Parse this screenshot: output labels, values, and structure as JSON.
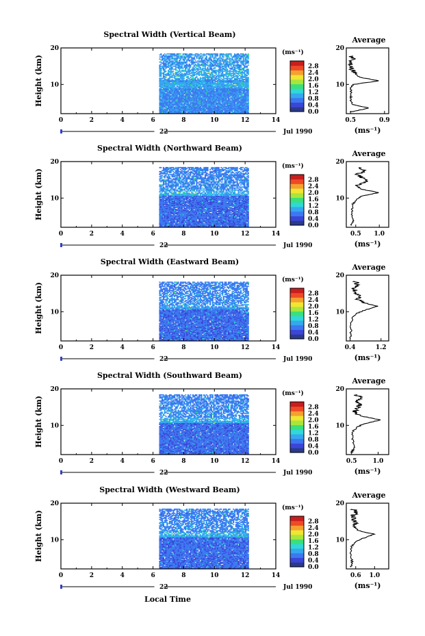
{
  "figure": {
    "x_axis_label": "Local Time",
    "date_day": "22",
    "date_month_year": "Jul 1990",
    "average_title": "Average",
    "colorbar_unit": "(ms⁻¹)",
    "average_unit": "(ms⁻¹)",
    "colorbar_ticks": [
      "0.0",
      "0.4",
      "0.8",
      "1.2",
      "1.6",
      "2.0",
      "2.4",
      "2.8"
    ],
    "colorbar_colors": [
      "#2b3a8c",
      "#3b46d8",
      "#3c78f0",
      "#35a8f0",
      "#30d8d8",
      "#3ce07a",
      "#a8e63c",
      "#f0e632",
      "#f5a030",
      "#ef4a26",
      "#c81e1e"
    ],
    "missing_color": "#ffffff"
  },
  "chart_data": [
    {
      "type": "heatmap",
      "title": "Spectral Width (Vertical Beam)",
      "xlabel": "Local Time",
      "ylabel": "Height (km)",
      "xlim": [
        0,
        14
      ],
      "ylim": [
        2,
        20
      ],
      "xticks": [
        0,
        2,
        4,
        6,
        8,
        10,
        12,
        14
      ],
      "yticks": [
        10,
        20
      ],
      "data_time_range": [
        6.4,
        12.2
      ],
      "data_height_range": [
        2.0,
        18.5
      ],
      "colorbar": {
        "label": "(ms⁻¹)",
        "range": [
          0.0,
          2.8
        ]
      },
      "layers": [
        {
          "h0": 2.0,
          "h1": 9.0,
          "value": 0.5
        },
        {
          "h0": 9.0,
          "h1": 10.5,
          "value": 0.7
        },
        {
          "h0": 10.5,
          "h1": 11.5,
          "value": 0.6
        },
        {
          "h0": 11.5,
          "h1": 14.0,
          "value": 0.7
        },
        {
          "h0": 14.0,
          "h1": 18.5,
          "value": 0.6
        }
      ],
      "average": {
        "xlabel": "(ms⁻¹)",
        "xlim": [
          0.45,
          0.95
        ],
        "xticks": [
          0.5,
          0.9
        ],
        "ylim": [
          2,
          20
        ],
        "yticks": [
          10,
          20
        ],
        "heights": [
          2.5,
          3.5,
          4.5,
          6.0,
          7.5,
          9.0,
          10.0,
          11.0,
          12.0,
          13.0,
          14.0,
          15.0,
          16.0,
          17.0,
          18.0
        ],
        "values": [
          0.5,
          0.72,
          0.52,
          0.5,
          0.51,
          0.5,
          0.53,
          0.84,
          0.6,
          0.55,
          0.52,
          0.5,
          0.5,
          0.53,
          0.5
        ]
      }
    },
    {
      "type": "heatmap",
      "title": "Spectral Width (Northward Beam)",
      "xlabel": "Local Time",
      "ylabel": "Height (km)",
      "xlim": [
        0,
        14
      ],
      "ylim": [
        2,
        20
      ],
      "xticks": [
        0,
        2,
        4,
        6,
        8,
        10,
        12,
        14
      ],
      "yticks": [
        10,
        20
      ],
      "data_time_range": [
        6.4,
        12.2
      ],
      "data_height_range": [
        2.0,
        18.5
      ],
      "colorbar": {
        "label": "(ms⁻¹)",
        "range": [
          0.0,
          2.8
        ]
      },
      "layers": [
        {
          "h0": 2.0,
          "h1": 10.5,
          "value": 0.35
        },
        {
          "h0": 10.5,
          "h1": 12.0,
          "value": 0.7
        },
        {
          "h0": 12.0,
          "h1": 15.0,
          "value": 0.5
        },
        {
          "h0": 15.0,
          "h1": 18.5,
          "value": 0.45
        }
      ],
      "average": {
        "xlabel": "(ms⁻¹)",
        "xlim": [
          0.3,
          1.2
        ],
        "xticks": [
          0.5,
          1.0
        ],
        "ylim": [
          2,
          20
        ],
        "yticks": [
          10,
          20
        ],
        "heights": [
          2.5,
          4.0,
          6.0,
          8.0,
          9.5,
          10.5,
          11.5,
          12.5,
          13.5,
          14.5,
          15.5,
          16.5,
          17.5,
          18.5
        ],
        "values": [
          0.4,
          0.45,
          0.42,
          0.42,
          0.5,
          0.62,
          0.98,
          0.6,
          0.55,
          0.75,
          0.65,
          0.55,
          0.7,
          0.6
        ]
      }
    },
    {
      "type": "heatmap",
      "title": "Spectral Width (Eastward Beam)",
      "xlabel": "Local Time",
      "ylabel": "Height (km)",
      "xlim": [
        0,
        14
      ],
      "ylim": [
        2,
        20
      ],
      "xticks": [
        0,
        2,
        4,
        6,
        8,
        10,
        12,
        14
      ],
      "yticks": [
        10,
        20
      ],
      "data_time_range": [
        6.4,
        12.2
      ],
      "data_height_range": [
        2.0,
        18.0
      ],
      "colorbar": {
        "label": "(ms⁻¹)",
        "range": [
          0.0,
          2.8
        ]
      },
      "layers": [
        {
          "h0": 2.0,
          "h1": 10.5,
          "value": 0.35
        },
        {
          "h0": 10.5,
          "h1": 12.0,
          "value": 0.6
        },
        {
          "h0": 12.0,
          "h1": 15.0,
          "value": 0.5
        },
        {
          "h0": 15.0,
          "h1": 18.0,
          "value": 0.45
        }
      ],
      "average": {
        "xlabel": "(ms⁻¹)",
        "xlim": [
          0.3,
          1.4
        ],
        "xticks": [
          0.4,
          1.2
        ],
        "ylim": [
          2,
          20
        ],
        "yticks": [
          10,
          20
        ],
        "heights": [
          2.5,
          4.0,
          6.0,
          8.0,
          9.5,
          10.5,
          11.5,
          12.5,
          13.5,
          14.5,
          15.5,
          16.5,
          17.5,
          18.5
        ],
        "values": [
          0.4,
          0.42,
          0.42,
          0.45,
          0.55,
          0.8,
          1.1,
          0.75,
          0.6,
          0.62,
          0.55,
          0.5,
          0.6,
          0.5
        ]
      }
    },
    {
      "type": "heatmap",
      "title": "Spectral Width (Southward Beam)",
      "xlabel": "Local Time",
      "ylabel": "Height (km)",
      "xlim": [
        0,
        14
      ],
      "ylim": [
        2,
        20
      ],
      "xticks": [
        0,
        2,
        4,
        6,
        8,
        10,
        12,
        14
      ],
      "yticks": [
        10,
        20
      ],
      "data_time_range": [
        6.4,
        12.2
      ],
      "data_height_range": [
        2.0,
        18.5
      ],
      "colorbar": {
        "label": "(ms⁻¹)",
        "range": [
          0.0,
          2.8
        ]
      },
      "layers": [
        {
          "h0": 2.0,
          "h1": 10.5,
          "value": 0.35
        },
        {
          "h0": 10.5,
          "h1": 12.0,
          "value": 0.7
        },
        {
          "h0": 12.0,
          "h1": 15.0,
          "value": 0.5
        },
        {
          "h0": 15.0,
          "h1": 18.5,
          "value": 0.45
        }
      ],
      "average": {
        "xlabel": "(ms⁻¹)",
        "xlim": [
          0.4,
          1.2
        ],
        "xticks": [
          0.5,
          1.0
        ],
        "ylim": [
          2,
          20
        ],
        "yticks": [
          10,
          20
        ],
        "heights": [
          2.5,
          4.0,
          6.0,
          8.0,
          9.5,
          10.5,
          11.5,
          12.5,
          13.5,
          14.5,
          15.5,
          16.5,
          17.5,
          18.5
        ],
        "values": [
          0.5,
          0.55,
          0.52,
          0.5,
          0.6,
          0.75,
          1.05,
          0.7,
          0.55,
          0.6,
          0.65,
          0.6,
          0.7,
          0.55
        ]
      }
    },
    {
      "type": "heatmap",
      "title": "Spectral Width (Westward Beam)",
      "xlabel": "Local Time",
      "ylabel": "Height (km)",
      "xlim": [
        0,
        14
      ],
      "ylim": [
        2,
        20
      ],
      "xticks": [
        0,
        2,
        4,
        6,
        8,
        10,
        12,
        14
      ],
      "yticks": [
        10,
        20
      ],
      "data_time_range": [
        6.4,
        12.2
      ],
      "data_height_range": [
        2.0,
        18.5
      ],
      "colorbar": {
        "label": "(ms⁻¹)",
        "range": [
          0.0,
          2.8
        ]
      },
      "layers": [
        {
          "h0": 2.0,
          "h1": 10.5,
          "value": 0.35
        },
        {
          "h0": 10.5,
          "h1": 12.0,
          "value": 0.7
        },
        {
          "h0": 12.0,
          "h1": 15.0,
          "value": 0.5
        },
        {
          "h0": 15.0,
          "h1": 18.5,
          "value": 0.45
        }
      ],
      "average": {
        "xlabel": "(ms⁻¹)",
        "xlim": [
          0.4,
          1.3
        ],
        "xticks": [
          0.6,
          1.0
        ],
        "ylim": [
          2,
          20
        ],
        "yticks": [
          10,
          20
        ],
        "heights": [
          2.5,
          4.0,
          6.0,
          8.0,
          9.5,
          10.5,
          11.5,
          12.5,
          13.5,
          14.5,
          15.5,
          16.5,
          17.5,
          18.5
        ],
        "values": [
          0.5,
          0.52,
          0.5,
          0.5,
          0.62,
          0.78,
          1.0,
          0.65,
          0.55,
          0.6,
          0.55,
          0.55,
          0.6,
          0.55
        ]
      }
    }
  ]
}
